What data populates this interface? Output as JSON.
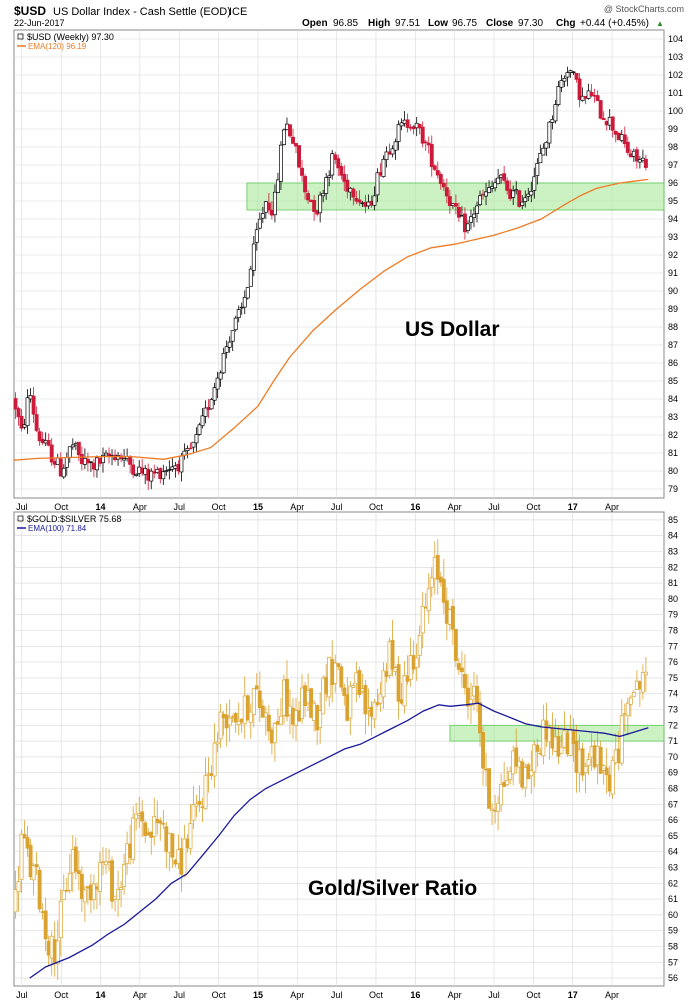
{
  "header": {
    "symbol": "$USD",
    "description": "US Dollar Index - Cash Settle (EOD)",
    "exchange": "ICE",
    "date": "22-Jun-2017",
    "open_label": "Open",
    "open": "96.85",
    "high_label": "High",
    "high": "97.51",
    "low_label": "Low",
    "low": "96.75",
    "close_label": "Close",
    "close": "97.30",
    "chg_label": "Chg",
    "chg": "+0.44 (+0.45%)",
    "chg_arrow": "▲",
    "watermark": "@ StockCharts.com"
  },
  "colors": {
    "up_candle": "#000000",
    "down_candle": "#cc1a3a",
    "ema_usd": "#ee7b24",
    "gold_candle": "#daa22e",
    "ema_ratio": "#1a1a9a",
    "zone_fill": "#a3e893",
    "zone_stroke": "#5ec85a",
    "annotation_text": "#000000"
  },
  "chart_data": [
    {
      "type": "candlestick",
      "panel": "top",
      "legend_series": "$USD (Weekly) 97.30",
      "legend_ema": "EMA(120) 96.19",
      "annotation": "US Dollar",
      "ylim": [
        78.5,
        104.5
      ],
      "yticks": [
        79,
        80,
        81,
        82,
        83,
        84,
        85,
        86,
        87,
        88,
        89,
        90,
        91,
        92,
        93,
        94,
        95,
        96,
        97,
        98,
        99,
        100,
        101,
        102,
        103,
        104
      ],
      "x_range": [
        2013.45,
        2017.58
      ],
      "x_ticks": [
        {
          "label": "Jul",
          "x": 2013.5,
          "bold": false
        },
        {
          "label": "Oct",
          "x": 2013.75,
          "bold": false
        },
        {
          "label": "14",
          "x": 2014.0,
          "bold": true
        },
        {
          "label": "Apr",
          "x": 2014.25,
          "bold": false
        },
        {
          "label": "Jul",
          "x": 2014.5,
          "bold": false
        },
        {
          "label": "Oct",
          "x": 2014.75,
          "bold": false
        },
        {
          "label": "15",
          "x": 2015.0,
          "bold": true
        },
        {
          "label": "Apr",
          "x": 2015.25,
          "bold": false
        },
        {
          "label": "Jul",
          "x": 2015.5,
          "bold": false
        },
        {
          "label": "Oct",
          "x": 2015.75,
          "bold": false
        },
        {
          "label": "16",
          "x": 2016.0,
          "bold": true
        },
        {
          "label": "Apr",
          "x": 2016.25,
          "bold": false
        },
        {
          "label": "Jul",
          "x": 2016.5,
          "bold": false
        },
        {
          "label": "Oct",
          "x": 2016.75,
          "bold": false
        },
        {
          "label": "17",
          "x": 2017.0,
          "bold": true
        },
        {
          "label": "Apr",
          "x": 2017.25,
          "bold": false
        }
      ],
      "zone": {
        "x0": 2014.93,
        "x1": 2017.58,
        "y0": 94.5,
        "y1": 96.0
      },
      "price_path": [
        [
          2013.45,
          84.0
        ],
        [
          2013.5,
          82.0
        ],
        [
          2013.55,
          84.5
        ],
        [
          2013.6,
          82.0
        ],
        [
          2013.68,
          81.0
        ],
        [
          2013.75,
          80.0
        ],
        [
          2013.82,
          81.5
        ],
        [
          2013.88,
          80.5
        ],
        [
          2013.95,
          80.3
        ],
        [
          2014.0,
          80.5
        ],
        [
          2014.1,
          81.0
        ],
        [
          2014.2,
          80.3
        ],
        [
          2014.3,
          79.7
        ],
        [
          2014.38,
          80.0
        ],
        [
          2014.45,
          80.3
        ],
        [
          2014.52,
          80.5
        ],
        [
          2014.6,
          81.5
        ],
        [
          2014.68,
          83.5
        ],
        [
          2014.75,
          85.5
        ],
        [
          2014.82,
          87.5
        ],
        [
          2014.9,
          89.0
        ],
        [
          2014.95,
          91.0
        ],
        [
          2015.0,
          93.5
        ],
        [
          2015.05,
          95.0
        ],
        [
          2015.1,
          94.5
        ],
        [
          2015.17,
          99.5
        ],
        [
          2015.22,
          98.5
        ],
        [
          2015.3,
          95.5
        ],
        [
          2015.38,
          94.5
        ],
        [
          2015.42,
          96.0
        ],
        [
          2015.48,
          97.5
        ],
        [
          2015.55,
          96.0
        ],
        [
          2015.62,
          95.5
        ],
        [
          2015.7,
          94.5
        ],
        [
          2015.8,
          97.5
        ],
        [
          2015.9,
          99.0
        ],
        [
          2015.97,
          99.5
        ],
        [
          2016.05,
          98.5
        ],
        [
          2016.12,
          97.0
        ],
        [
          2016.2,
          95.5
        ],
        [
          2016.27,
          94.0
        ],
        [
          2016.33,
          93.5
        ],
        [
          2016.4,
          95.0
        ],
        [
          2016.47,
          95.5
        ],
        [
          2016.53,
          96.3
        ],
        [
          2016.6,
          95.5
        ],
        [
          2016.67,
          95.0
        ],
        [
          2016.73,
          95.8
        ],
        [
          2016.78,
          97.0
        ],
        [
          2016.85,
          99.0
        ],
        [
          2016.9,
          101.0
        ],
        [
          2016.97,
          102.5
        ],
        [
          2017.02,
          101.5
        ],
        [
          2017.07,
          100.5
        ],
        [
          2017.12,
          101.0
        ],
        [
          2017.17,
          100.0
        ],
        [
          2017.23,
          99.5
        ],
        [
          2017.3,
          98.5
        ],
        [
          2017.37,
          97.5
        ],
        [
          2017.43,
          97.2
        ],
        [
          2017.48,
          97.3
        ]
      ],
      "ema_path": [
        [
          2013.45,
          80.6
        ],
        [
          2013.6,
          80.7
        ],
        [
          2013.8,
          80.75
        ],
        [
          2014.0,
          80.8
        ],
        [
          2014.2,
          80.8
        ],
        [
          2014.4,
          80.65
        ],
        [
          2014.55,
          80.9
        ],
        [
          2014.7,
          81.3
        ],
        [
          2014.85,
          82.4
        ],
        [
          2015.0,
          83.6
        ],
        [
          2015.1,
          85.0
        ],
        [
          2015.2,
          86.3
        ],
        [
          2015.35,
          87.8
        ],
        [
          2015.5,
          89.0
        ],
        [
          2015.65,
          90.1
        ],
        [
          2015.8,
          91.1
        ],
        [
          2015.95,
          91.9
        ],
        [
          2016.1,
          92.4
        ],
        [
          2016.25,
          92.6
        ],
        [
          2016.35,
          92.8
        ],
        [
          2016.5,
          93.1
        ],
        [
          2016.65,
          93.5
        ],
        [
          2016.8,
          94.0
        ],
        [
          2016.95,
          94.8
        ],
        [
          2017.05,
          95.3
        ],
        [
          2017.15,
          95.7
        ],
        [
          2017.3,
          96.0
        ],
        [
          2017.48,
          96.2
        ]
      ]
    },
    {
      "type": "candlestick",
      "panel": "bottom",
      "legend_series": "$GOLD:$SILVER 75.68",
      "legend_ema": "EMA(100) 71.84",
      "annotation": "Gold/Silver Ratio",
      "ylim": [
        55.5,
        85.5
      ],
      "yticks": [
        56,
        57,
        58,
        59,
        60,
        61,
        62,
        63,
        64,
        65,
        66,
        67,
        68,
        69,
        70,
        71,
        72,
        73,
        74,
        75,
        76,
        77,
        78,
        79,
        80,
        81,
        82,
        83,
        84,
        85
      ],
      "x_range": [
        2013.45,
        2017.58
      ],
      "x_ticks": [
        {
          "label": "Jul",
          "x": 2013.5,
          "bold": false
        },
        {
          "label": "Oct",
          "x": 2013.75,
          "bold": false
        },
        {
          "label": "14",
          "x": 2014.0,
          "bold": true
        },
        {
          "label": "Apr",
          "x": 2014.25,
          "bold": false
        },
        {
          "label": "Jul",
          "x": 2014.5,
          "bold": false
        },
        {
          "label": "Oct",
          "x": 2014.75,
          "bold": false
        },
        {
          "label": "15",
          "x": 2015.0,
          "bold": true
        },
        {
          "label": "Apr",
          "x": 2015.25,
          "bold": false
        },
        {
          "label": "Jul",
          "x": 2015.5,
          "bold": false
        },
        {
          "label": "Oct",
          "x": 2015.75,
          "bold": false
        },
        {
          "label": "16",
          "x": 2016.0,
          "bold": true
        },
        {
          "label": "Apr",
          "x": 2016.25,
          "bold": false
        },
        {
          "label": "Jul",
          "x": 2016.5,
          "bold": false
        },
        {
          "label": "Oct",
          "x": 2016.75,
          "bold": false
        },
        {
          "label": "17",
          "x": 2017.0,
          "bold": true
        },
        {
          "label": "Apr",
          "x": 2017.25,
          "bold": false
        }
      ],
      "zone": {
        "x0": 2016.22,
        "x1": 2017.58,
        "y0": 71.0,
        "y1": 72.0
      },
      "price_path": [
        [
          2013.45,
          60.0
        ],
        [
          2013.5,
          65.0
        ],
        [
          2013.55,
          63.0
        ],
        [
          2013.6,
          62.0
        ],
        [
          2013.65,
          59.0
        ],
        [
          2013.7,
          57.5
        ],
        [
          2013.75,
          60.0
        ],
        [
          2013.82,
          64.0
        ],
        [
          2013.9,
          61.0
        ],
        [
          2013.97,
          62.5
        ],
        [
          2014.02,
          63.5
        ],
        [
          2014.1,
          61.0
        ],
        [
          2014.17,
          64.0
        ],
        [
          2014.25,
          66.5
        ],
        [
          2014.3,
          65.0
        ],
        [
          2014.38,
          66.0
        ],
        [
          2014.45,
          64.0
        ],
        [
          2014.5,
          63.0
        ],
        [
          2014.57,
          65.5
        ],
        [
          2014.63,
          67.0
        ],
        [
          2014.7,
          69.5
        ],
        [
          2014.77,
          72.5
        ],
        [
          2014.83,
          73.0
        ],
        [
          2014.9,
          72.5
        ],
        [
          2014.97,
          74.0
        ],
        [
          2015.03,
          73.0
        ],
        [
          2015.1,
          71.5
        ],
        [
          2015.17,
          74.0
        ],
        [
          2015.23,
          72.0
        ],
        [
          2015.3,
          74.0
        ],
        [
          2015.37,
          72.5
        ],
        [
          2015.43,
          75.0
        ],
        [
          2015.5,
          76.0
        ],
        [
          2015.57,
          73.0
        ],
        [
          2015.63,
          74.5
        ],
        [
          2015.7,
          72.5
        ],
        [
          2015.77,
          74.0
        ],
        [
          2015.83,
          76.5
        ],
        [
          2015.9,
          74.0
        ],
        [
          2015.97,
          76.0
        ],
        [
          2016.03,
          78.0
        ],
        [
          2016.08,
          80.0
        ],
        [
          2016.13,
          82.0
        ],
        [
          2016.17,
          81.0
        ],
        [
          2016.21,
          79.0
        ],
        [
          2016.25,
          77.0
        ],
        [
          2016.3,
          74.5
        ],
        [
          2016.35,
          74.0
        ],
        [
          2016.4,
          73.5
        ],
        [
          2016.43,
          69.5
        ],
        [
          2016.47,
          67.0
        ],
        [
          2016.52,
          67.5
        ],
        [
          2016.57,
          68.5
        ],
        [
          2016.63,
          70.0
        ],
        [
          2016.7,
          68.5
        ],
        [
          2016.77,
          70.5
        ],
        [
          2016.83,
          72.0
        ],
        [
          2016.9,
          70.5
        ],
        [
          2016.97,
          71.0
        ],
        [
          2017.03,
          70.0
        ],
        [
          2017.08,
          69.5
        ],
        [
          2017.13,
          70.5
        ],
        [
          2017.18,
          69.0
        ],
        [
          2017.23,
          68.5
        ],
        [
          2017.28,
          70.0
        ],
        [
          2017.32,
          72.0
        ],
        [
          2017.36,
          75.0
        ],
        [
          2017.41,
          74.0
        ],
        [
          2017.45,
          75.5
        ],
        [
          2017.48,
          75.7
        ]
      ],
      "ema_path": [
        [
          2013.55,
          56.0
        ],
        [
          2013.65,
          56.7
        ],
        [
          2013.8,
          57.3
        ],
        [
          2013.95,
          58.1
        ],
        [
          2014.05,
          58.8
        ],
        [
          2014.15,
          59.4
        ],
        [
          2014.25,
          60.2
        ],
        [
          2014.35,
          61.0
        ],
        [
          2014.45,
          62.0
        ],
        [
          2014.55,
          62.6
        ],
        [
          2014.65,
          63.8
        ],
        [
          2014.75,
          65.0
        ],
        [
          2014.85,
          66.3
        ],
        [
          2014.95,
          67.3
        ],
        [
          2015.05,
          68.0
        ],
        [
          2015.15,
          68.5
        ],
        [
          2015.25,
          69.0
        ],
        [
          2015.35,
          69.5
        ],
        [
          2015.45,
          70.0
        ],
        [
          2015.55,
          70.5
        ],
        [
          2015.65,
          70.8
        ],
        [
          2015.75,
          71.3
        ],
        [
          2015.85,
          71.8
        ],
        [
          2015.95,
          72.3
        ],
        [
          2016.05,
          72.9
        ],
        [
          2016.15,
          73.3
        ],
        [
          2016.22,
          73.2
        ],
        [
          2016.32,
          73.3
        ],
        [
          2016.4,
          73.4
        ],
        [
          2016.5,
          72.9
        ],
        [
          2016.6,
          72.5
        ],
        [
          2016.7,
          72.1
        ],
        [
          2016.8,
          71.9
        ],
        [
          2016.9,
          71.8
        ],
        [
          2017.0,
          71.7
        ],
        [
          2017.1,
          71.6
        ],
        [
          2017.2,
          71.5
        ],
        [
          2017.3,
          71.3
        ],
        [
          2017.4,
          71.6
        ],
        [
          2017.48,
          71.84
        ]
      ]
    }
  ]
}
